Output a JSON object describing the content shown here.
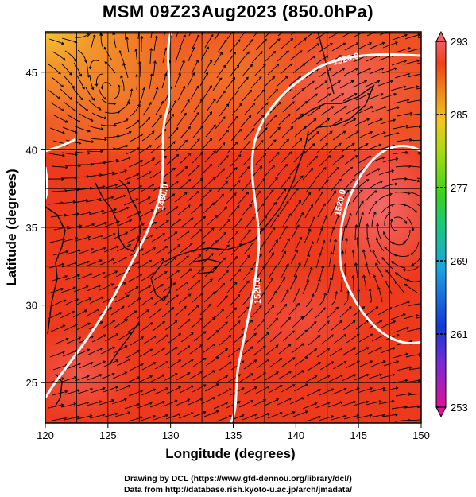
{
  "title": "MSM 09Z23Aug2023 (850.0hPa)",
  "x_axis": {
    "label": "Longitude (degrees)",
    "ticks": [
      120,
      125,
      130,
      135,
      140,
      145,
      150
    ],
    "range": [
      120,
      150
    ]
  },
  "y_axis": {
    "label": "Latitude  (degrees)",
    "ticks": [
      25,
      30,
      35,
      40,
      45
    ],
    "range": [
      22.4,
      47.6
    ]
  },
  "colorbar": {
    "ticks": [
      293,
      285,
      277,
      269,
      261,
      253
    ],
    "range": [
      253,
      293
    ],
    "colors": [
      "#e0109a",
      "#7a2ad6",
      "#1238d8",
      "#1aa4e0",
      "#19c87a",
      "#3ad21a",
      "#a8dc10",
      "#f0c81a",
      "#f08a18",
      "#f04018",
      "#f06060"
    ]
  },
  "contours": [
    {
      "label": "1480.0"
    },
    {
      "label": "1520.0"
    },
    {
      "label": "1520.0"
    },
    {
      "label": "1520.0"
    }
  ],
  "colors": {
    "background_field": "#ee3a1c",
    "warm_field": "#f06a28",
    "cool_corner": "#f0b830",
    "contour": "#ffffff",
    "streamline": "#000000"
  },
  "credits": {
    "line1": "Drawing by DCL (https://www.gfd-dennou.org/library/dcl/)",
    "line2": "Data from http://database.rish.kyoto-u.ac.jp/arch/jmadata/"
  }
}
